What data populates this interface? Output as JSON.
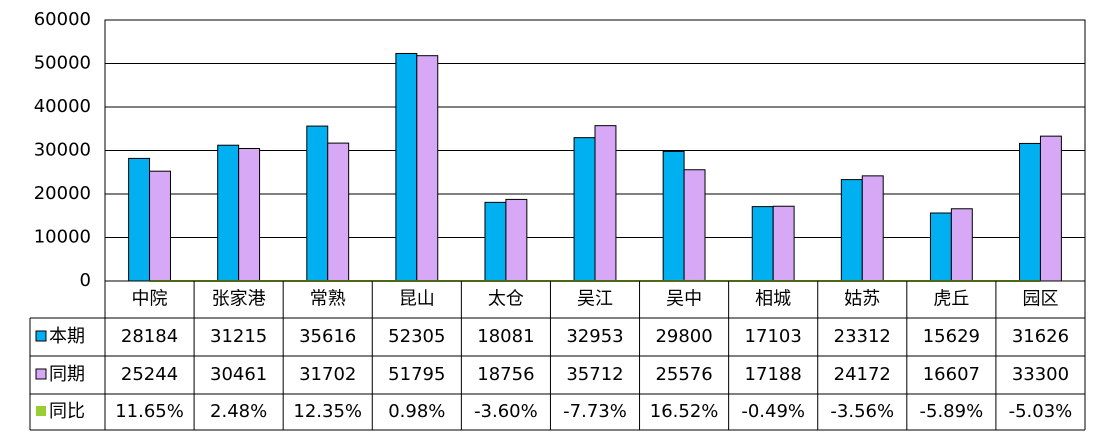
{
  "chart_data": {
    "type": "bar",
    "categories": [
      "中院",
      "张家港",
      "常熟",
      "昆山",
      "太仓",
      "吴江",
      "吴中",
      "相城",
      "姑苏",
      "虎丘",
      "园区"
    ],
    "series": [
      {
        "name": "本期",
        "color": "#00b0f0",
        "values": [
          28184,
          31215,
          35616,
          52305,
          18081,
          32953,
          29800,
          17103,
          23312,
          15629,
          31626
        ]
      },
      {
        "name": "同期",
        "color": "#d6a8f5",
        "values": [
          25244,
          30461,
          31702,
          51795,
          18756,
          35712,
          25576,
          17188,
          24172,
          16607,
          33300
        ]
      },
      {
        "name": "同比",
        "color": "#9acd32",
        "type": "line",
        "values": [
          11.65,
          2.48,
          12.35,
          0.98,
          -3.6,
          -7.73,
          16.52,
          -0.49,
          -3.56,
          -5.89,
          -5.03
        ],
        "value_labels": [
          "11.65%",
          "2.48%",
          "12.35%",
          "0.98%",
          "-3.60%",
          "-7.73%",
          "16.52%",
          "-0.49%",
          "-3.56%",
          "-5.89%",
          "-5.03%"
        ]
      }
    ],
    "ylim": [
      0,
      60000
    ],
    "yticks": [
      0,
      10000,
      20000,
      30000,
      40000,
      50000,
      60000
    ],
    "grid": true,
    "data_table": true
  }
}
